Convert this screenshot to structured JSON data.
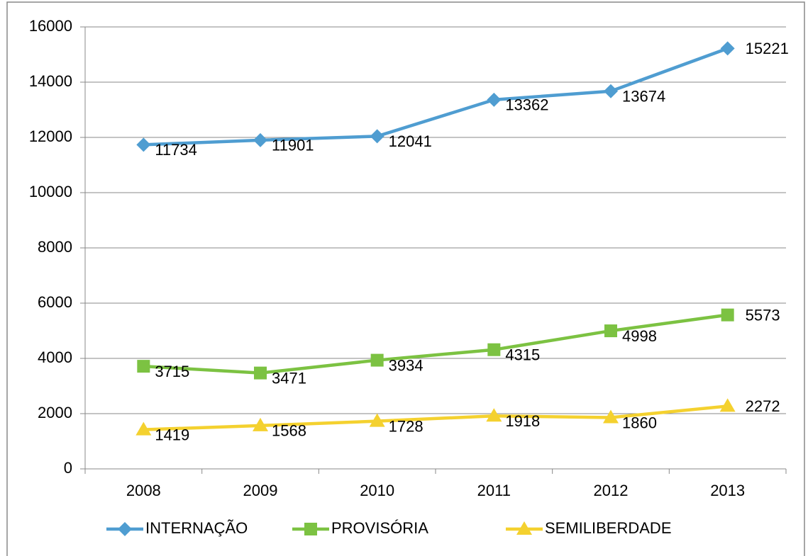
{
  "chart_data": {
    "type": "line",
    "categories": [
      "2008",
      "2009",
      "2010",
      "2011",
      "2012",
      "2013"
    ],
    "series": [
      {
        "name": "INTERNAÇÃO",
        "color": "#4f9dd1",
        "marker": "diamond",
        "values": [
          11734,
          11901,
          12041,
          13362,
          13674,
          15221
        ]
      },
      {
        "name": "PROVISÓRIA",
        "color": "#7cc242",
        "marker": "square",
        "values": [
          3715,
          3471,
          3934,
          4315,
          4998,
          5573
        ]
      },
      {
        "name": "SEMILIBERDADE",
        "color": "#f4d12f",
        "marker": "triangle",
        "values": [
          1419,
          1568,
          1728,
          1918,
          1860,
          2272
        ]
      }
    ],
    "ylim": [
      0,
      16000
    ],
    "yticks": [
      0,
      2000,
      4000,
      6000,
      8000,
      10000,
      12000,
      14000,
      16000
    ],
    "grid": true,
    "legend": "bottom"
  }
}
